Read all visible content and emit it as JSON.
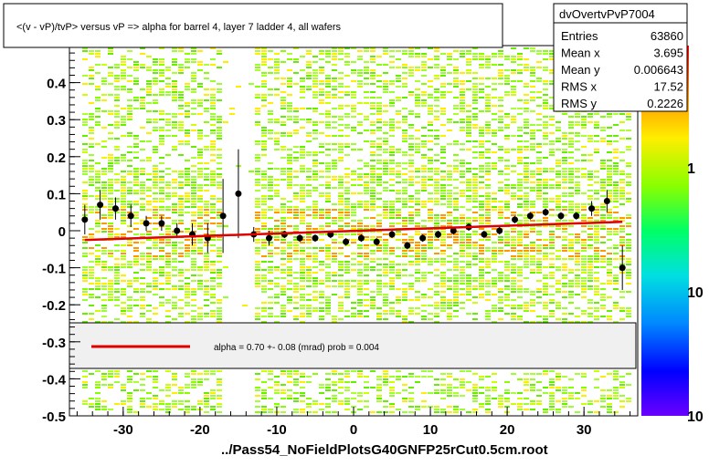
{
  "title": "<(v - vP)/tvP> versus   vP => alpha for barrel 4, layer 7 ladder 4, all wafers",
  "footer": "../Pass54_NoFieldPlotsG40GNFP25rCut0.5cm.root",
  "stats": {
    "name": "dvOvertvPvP7004",
    "rows": [
      {
        "label": "Entries",
        "value": "63860"
      },
      {
        "label": "Mean x",
        "value": "3.695"
      },
      {
        "label": "Mean y",
        "value": "0.006643"
      },
      {
        "label": "RMS x",
        "value": "17.52"
      },
      {
        "label": "RMS y",
        "value": "0.2226"
      }
    ]
  },
  "fit_legend": {
    "text": "alpha =    0.70 +-  0.08 (mrad) prob = 0.004",
    "line_color": "#e00000"
  },
  "palette": {
    "label_1": "1",
    "label_10_mid": "10",
    "label_10_low": "10"
  },
  "chart_data": {
    "type": "scatter",
    "xlim": [
      -37,
      37
    ],
    "ylim": [
      -0.5,
      0.5
    ],
    "x_ticks": [
      -30,
      -20,
      -10,
      0,
      10,
      20,
      30
    ],
    "x_tick_labels": [
      "-30",
      "-20",
      "-10",
      "0",
      "10",
      "20",
      "30"
    ],
    "y_ticks": [
      0.4,
      0.3,
      0.2,
      0.1,
      0,
      -0.1,
      -0.2,
      -0.3,
      -0.4,
      -0.5
    ],
    "y_tick_labels": [
      "0.4",
      "0.3",
      "0.2",
      "0.1",
      "0",
      "-0.1",
      "-0.2",
      "-0.3",
      "-0.4",
      "-0.5"
    ],
    "fit": {
      "x": [
        -35,
        35
      ],
      "y": [
        -0.025,
        0.024
      ]
    },
    "profile": {
      "x": [
        -35,
        -33,
        -31,
        -29,
        -27,
        -25,
        -23,
        -21,
        -19,
        -17,
        -15,
        -13,
        -11,
        -9,
        -7,
        -5,
        -3,
        -1,
        1,
        3,
        5,
        7,
        9,
        11,
        13,
        15,
        17,
        19,
        21,
        23,
        25,
        27,
        29,
        31,
        33,
        35
      ],
      "y": [
        0.03,
        0.07,
        0.06,
        0.04,
        0.02,
        0.02,
        0.0,
        -0.01,
        -0.02,
        0.04,
        0.1,
        -0.01,
        -0.02,
        -0.01,
        -0.02,
        -0.02,
        -0.01,
        -0.03,
        -0.02,
        -0.03,
        -0.01,
        -0.04,
        -0.02,
        -0.01,
        0.0,
        0.01,
        -0.01,
        0.0,
        0.03,
        0.04,
        0.05,
        0.04,
        0.04,
        0.06,
        0.08,
        -0.1
      ],
      "err": [
        0.04,
        0.04,
        0.03,
        0.03,
        0.02,
        0.02,
        0.02,
        0.03,
        0.04,
        0.1,
        0.12,
        0.02,
        0.02,
        0.01,
        0.01,
        0.01,
        0.01,
        0.01,
        0.01,
        0.01,
        0.01,
        0.01,
        0.01,
        0.01,
        0.01,
        0.01,
        0.01,
        0.01,
        0.01,
        0.01,
        0.01,
        0.01,
        0.01,
        0.02,
        0.03,
        0.06
      ]
    }
  }
}
